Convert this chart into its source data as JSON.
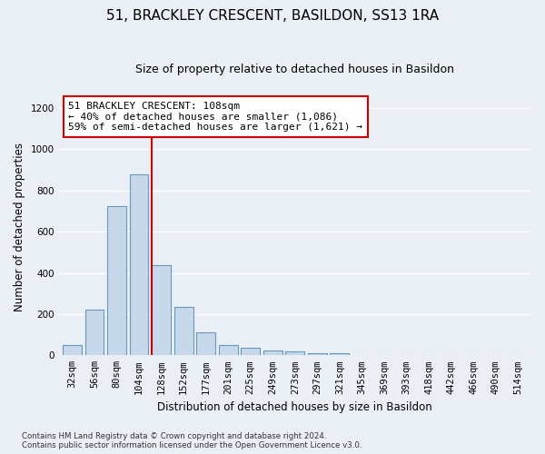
{
  "title": "51, BRACKLEY CRESCENT, BASILDON, SS13 1RA",
  "subtitle": "Size of property relative to detached houses in Basildon",
  "xlabel": "Distribution of detached houses by size in Basildon",
  "ylabel": "Number of detached properties",
  "footnote": "Contains HM Land Registry data © Crown copyright and database right 2024.\nContains public sector information licensed under the Open Government Licence v3.0.",
  "bar_labels": [
    "32sqm",
    "56sqm",
    "80sqm",
    "104sqm",
    "128sqm",
    "152sqm",
    "177sqm",
    "201sqm",
    "225sqm",
    "249sqm",
    "273sqm",
    "297sqm",
    "321sqm",
    "345sqm",
    "369sqm",
    "393sqm",
    "418sqm",
    "442sqm",
    "466sqm",
    "490sqm",
    "514sqm"
  ],
  "bar_values": [
    50,
    220,
    725,
    880,
    440,
    235,
    110,
    48,
    35,
    25,
    20,
    10,
    10,
    0,
    0,
    0,
    0,
    0,
    0,
    0,
    0
  ],
  "bar_color": "#c8d8eb",
  "bar_edge_color": "#6699bb",
  "vline_x": 3.58,
  "vline_color": "#cc0000",
  "annotation_line1": "51 BRACKLEY CRESCENT: 108sqm",
  "annotation_line2": "← 40% of detached houses are smaller (1,086)",
  "annotation_line3": "59% of semi-detached houses are larger (1,621) →",
  "annotation_box_color": "#cc0000",
  "ylim": [
    0,
    1250
  ],
  "yticks": [
    0,
    200,
    400,
    600,
    800,
    1000,
    1200
  ],
  "background_color": "#eaeef5",
  "plot_background": "#eaeef5",
  "grid_color": "#ffffff",
  "title_fontsize": 11,
  "subtitle_fontsize": 9,
  "axis_label_fontsize": 8.5,
  "tick_fontsize": 7.5,
  "annotation_fontsize": 8
}
